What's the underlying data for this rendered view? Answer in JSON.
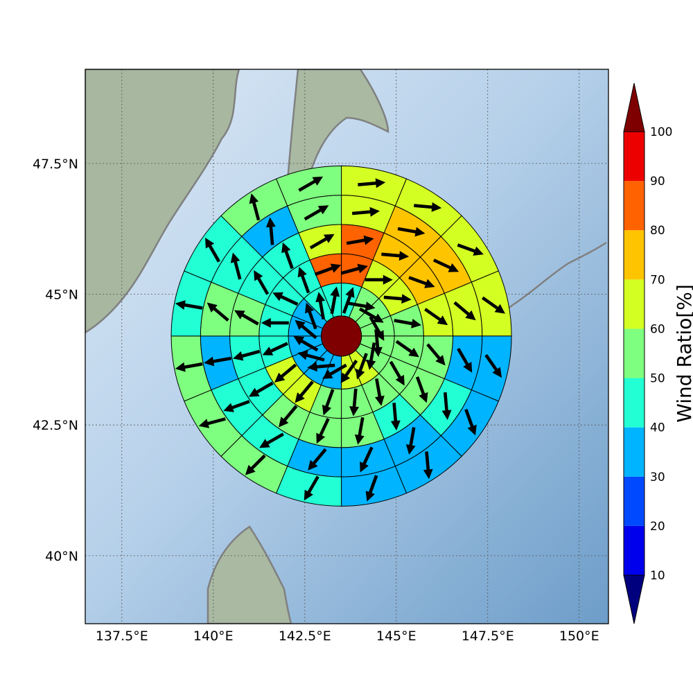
{
  "chart_data": {
    "type": "heatmap",
    "title": "",
    "xlabel": "",
    "ylabel": "",
    "x_ticks": [
      "137.5°E",
      "140°E",
      "142.5°E",
      "145°E",
      "147.5°E",
      "150°E"
    ],
    "x_tick_values": [
      137.5,
      140,
      142.5,
      145,
      147.5,
      150
    ],
    "y_ticks": [
      "40°N",
      "42.5°N",
      "45°N",
      "47.5°N"
    ],
    "y_tick_values": [
      40,
      42.5,
      45,
      47.5
    ],
    "xlim": [
      136.5,
      150.8
    ],
    "ylim": [
      38.7,
      49.3
    ],
    "grid": true,
    "center": {
      "lon": 143.5,
      "lat": 44.2,
      "value": 100
    },
    "ring_radii_deg": [
      0.55,
      1.45,
      2.25,
      3.05,
      3.85,
      4.65
    ],
    "sector_start_bearings_deg": [
      0,
      22.5,
      45,
      67.5,
      90,
      112.5,
      135,
      157.5,
      180,
      202.5,
      225,
      247.5,
      270,
      292.5,
      315,
      337.5
    ],
    "rings": [
      [
        45,
        55,
        55,
        55,
        55,
        55,
        60,
        60,
        35,
        35,
        35,
        35,
        35,
        35,
        45,
        45
      ],
      [
        85,
        65,
        60,
        50,
        55,
        50,
        55,
        55,
        55,
        60,
        65,
        45,
        45,
        45,
        45,
        85
      ],
      [
        85,
        75,
        70,
        65,
        55,
        55,
        45,
        55,
        55,
        55,
        45,
        45,
        55,
        45,
        45,
        65
      ],
      [
        65,
        75,
        75,
        65,
        35,
        45,
        35,
        35,
        35,
        45,
        45,
        35,
        55,
        45,
        35,
        55
      ],
      [
        65,
        65,
        65,
        65,
        35,
        35,
        35,
        35,
        45,
        55,
        55,
        55,
        45,
        45,
        55,
        55
      ]
    ],
    "wind_dir_deg": [
      [
        20,
        100,
        120,
        150,
        175,
        190,
        200,
        215,
        240,
        265,
        285,
        300,
        310,
        340,
        350,
        10
      ],
      [
        75,
        90,
        95,
        100,
        125,
        150,
        170,
        185,
        200,
        220,
        230,
        245,
        270,
        295,
        340,
        70
      ],
      [
        80,
        95,
        110,
        125,
        140,
        160,
        175,
        190,
        205,
        220,
        240,
        255,
        300,
        330,
        340,
        60
      ],
      [
        85,
        100,
        115,
        130,
        150,
        175,
        190,
        205,
        220,
        240,
        250,
        260,
        310,
        345,
        355,
        60
      ],
      [
        85,
        95,
        110,
        125,
        145,
        160,
        175,
        200,
        210,
        225,
        255,
        260,
        280,
        330,
        345,
        60
      ]
    ],
    "colorbar": {
      "label": "Wind Ratio[%]",
      "ticks": [
        10,
        20,
        30,
        40,
        50,
        60,
        70,
        80,
        90,
        100
      ],
      "range": [
        0,
        110
      ],
      "colors": [
        "#00007f",
        "#0000ed",
        "#0049ff",
        "#00b4ff",
        "#23ffd4",
        "#7fff7f",
        "#d4ff23",
        "#ffc400",
        "#ff6200",
        "#ed0000",
        "#7f0000"
      ]
    }
  }
}
